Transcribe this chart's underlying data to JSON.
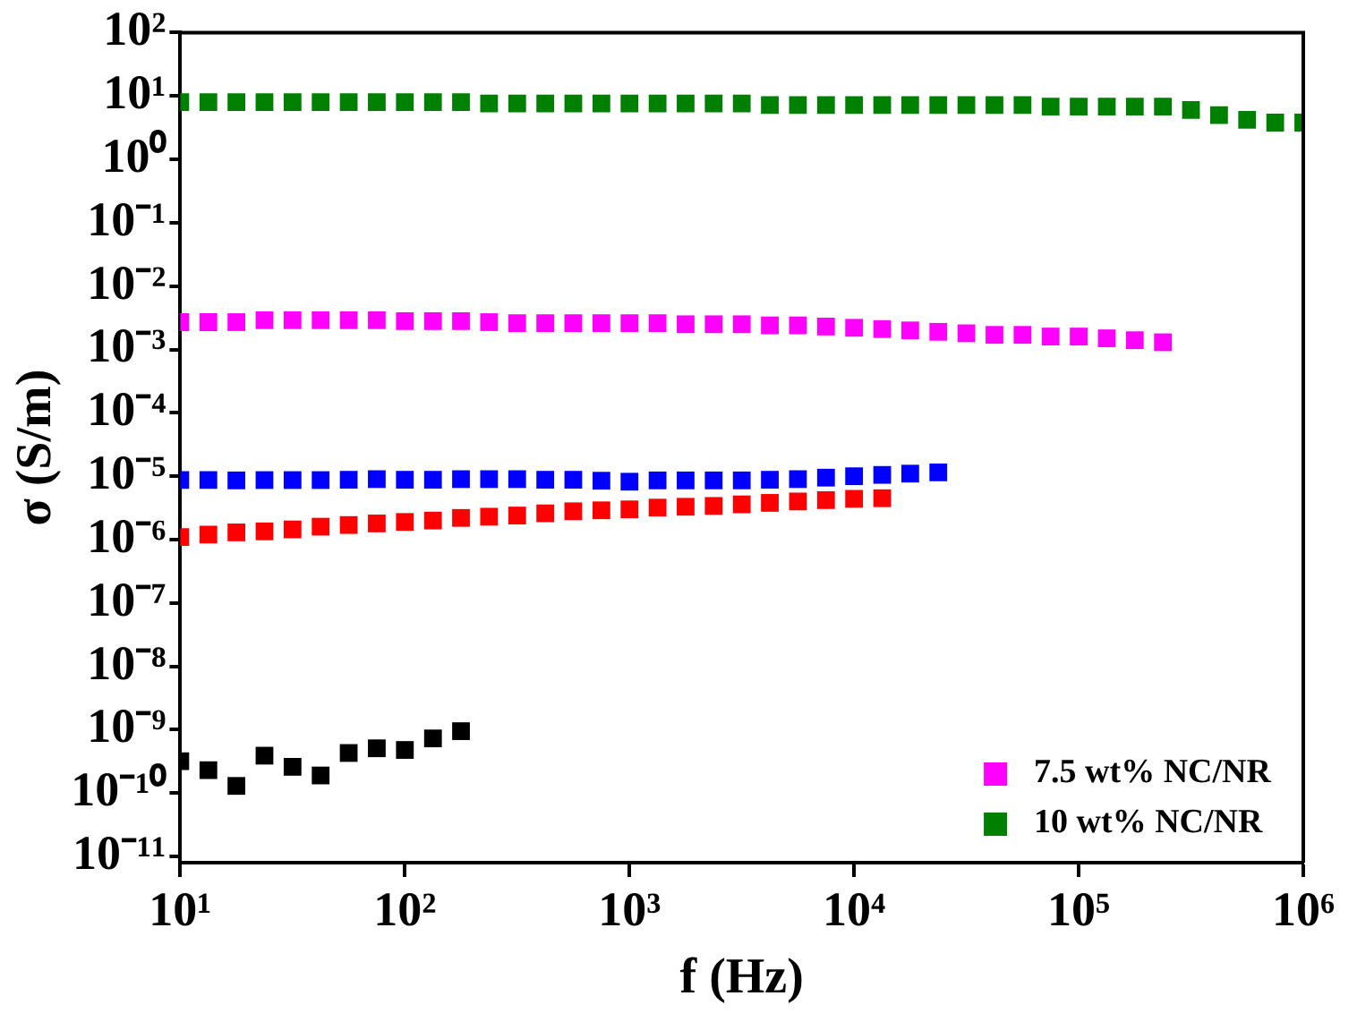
{
  "chart_data": {
    "type": "scatter",
    "xlabel": "f (Hz)",
    "ylabel": "σ (S/m)",
    "log": "xy",
    "marker": "square",
    "legend": "bottom right",
    "grid": false,
    "x": [
      10,
      13.34,
      17.78,
      23.71,
      31.62,
      42.17,
      56.23,
      74.99,
      100,
      133.4,
      177.8,
      237.1,
      316.2,
      421.7,
      562.3,
      749.9,
      1000,
      1334,
      1778,
      2371,
      3162,
      4217,
      5623,
      7499,
      10000,
      13340,
      17780,
      23710,
      31620,
      42170,
      56230,
      74990,
      100000,
      133400,
      177800,
      237100,
      316200,
      421700,
      562300,
      749900,
      1000000
    ],
    "xlim": [
      10,
      1000000
    ],
    "xticks": [
      {
        "value": 10,
        "label": "10¹"
      },
      {
        "value": 100,
        "label": "10²"
      },
      {
        "value": 1000,
        "label": "10³"
      },
      {
        "value": 10000,
        "label": "10⁴"
      },
      {
        "value": 100000,
        "label": "10⁵"
      },
      {
        "value": 1000000,
        "label": "10⁶"
      }
    ],
    "ylim": [
      8e-12,
      100
    ],
    "yticks": [
      {
        "value": 1e-11,
        "label": "10⁻¹¹"
      },
      {
        "value": 1e-10,
        "label": "10⁻¹⁰"
      },
      {
        "value": 1e-09,
        "label": "10⁻⁹"
      },
      {
        "value": 1e-08,
        "label": "10⁻⁸"
      },
      {
        "value": 1e-07,
        "label": "10⁻⁷"
      },
      {
        "value": 1e-06,
        "label": "10⁻⁶"
      },
      {
        "value": 1e-05,
        "label": "10⁻⁵"
      },
      {
        "value": 0.0001,
        "label": "10⁻⁴"
      },
      {
        "value": 0.001,
        "label": "10⁻³"
      },
      {
        "value": 0.01,
        "label": "10⁻²"
      },
      {
        "value": 0.1,
        "label": "10⁻¹"
      },
      {
        "value": 1,
        "label": "10⁰"
      },
      {
        "value": 10,
        "label": "10¹"
      },
      {
        "value": 100,
        "label": "10²"
      }
    ],
    "series": [
      {
        "color": "#000000",
        "values": [
          3.2e-10,
          2.3e-10,
          1.3e-10,
          3.9e-10,
          2.6e-10,
          1.9e-10,
          4.3e-10,
          5.1e-10,
          4.8e-10,
          7.3e-10,
          9.5e-10,
          null,
          null,
          null,
          null,
          null,
          null,
          null,
          null,
          null,
          null,
          null,
          null,
          null,
          null,
          null,
          null,
          null,
          null,
          null,
          null,
          null,
          null,
          null,
          null,
          null,
          null,
          null,
          null,
          null,
          null
        ]
      },
      {
        "color": "#ff0000",
        "values": [
          1.1e-06,
          1.2e-06,
          1.3e-06,
          1.35e-06,
          1.45e-06,
          1.6e-06,
          1.7e-06,
          1.8e-06,
          1.9e-06,
          2e-06,
          2.2e-06,
          2.3e-06,
          2.4e-06,
          2.6e-06,
          2.8e-06,
          2.9e-06,
          3e-06,
          3.2e-06,
          3.3e-06,
          3.4e-06,
          3.6e-06,
          3.8e-06,
          4e-06,
          4.2e-06,
          4.4e-06,
          4.5e-06,
          null,
          null,
          null,
          null,
          null,
          null,
          null,
          null,
          null,
          null,
          null,
          null,
          null,
          null,
          null
        ]
      },
      {
        "color": "#0000ff",
        "values": [
          8.7e-06,
          8.7e-06,
          8.6e-06,
          8.7e-06,
          8.7e-06,
          8.7e-06,
          8.8e-06,
          9e-06,
          8.8e-06,
          8.8e-06,
          9e-06,
          9e-06,
          9e-06,
          8.8e-06,
          8.8e-06,
          8.5e-06,
          8.2e-06,
          8.6e-06,
          8.6e-06,
          8.6e-06,
          8.6e-06,
          8.8e-06,
          9e-06,
          9.5e-06,
          1e-05,
          1.05e-05,
          1.1e-05,
          1.15e-05,
          null,
          null,
          null,
          null,
          null,
          null,
          null,
          null,
          null,
          null,
          null,
          null,
          null
        ]
      },
      {
        "name": "7.5 wt% NC/NR",
        "color": "#ff00ff",
        "values": [
          0.0027,
          0.0027,
          0.0027,
          0.0029,
          0.0029,
          0.0029,
          0.0029,
          0.0029,
          0.0028,
          0.0028,
          0.0028,
          0.0027,
          0.0026,
          0.0026,
          0.0026,
          0.0026,
          0.0026,
          0.0026,
          0.0025,
          0.0025,
          0.0025,
          0.0024,
          0.0024,
          0.0023,
          0.0022,
          0.0021,
          0.002,
          0.0019,
          0.0018,
          0.0017,
          0.0017,
          0.0016,
          0.0016,
          0.0015,
          0.0014,
          0.0013,
          null,
          null,
          null,
          null,
          null
        ]
      },
      {
        "name": "10 wt% NC/NR",
        "color": "#008000",
        "values": [
          8,
          8,
          8,
          8,
          8,
          8,
          8,
          8,
          8,
          8,
          8,
          7.6,
          7.6,
          7.6,
          7.6,
          7.6,
          7.6,
          7.6,
          7.6,
          7.6,
          7.6,
          7.2,
          7.2,
          7.2,
          7.2,
          7.2,
          7.2,
          7.2,
          7.2,
          7.2,
          7.2,
          6.8,
          6.8,
          6.8,
          6.8,
          6.8,
          6,
          5,
          4.2,
          3.8,
          3.8
        ]
      }
    ]
  }
}
